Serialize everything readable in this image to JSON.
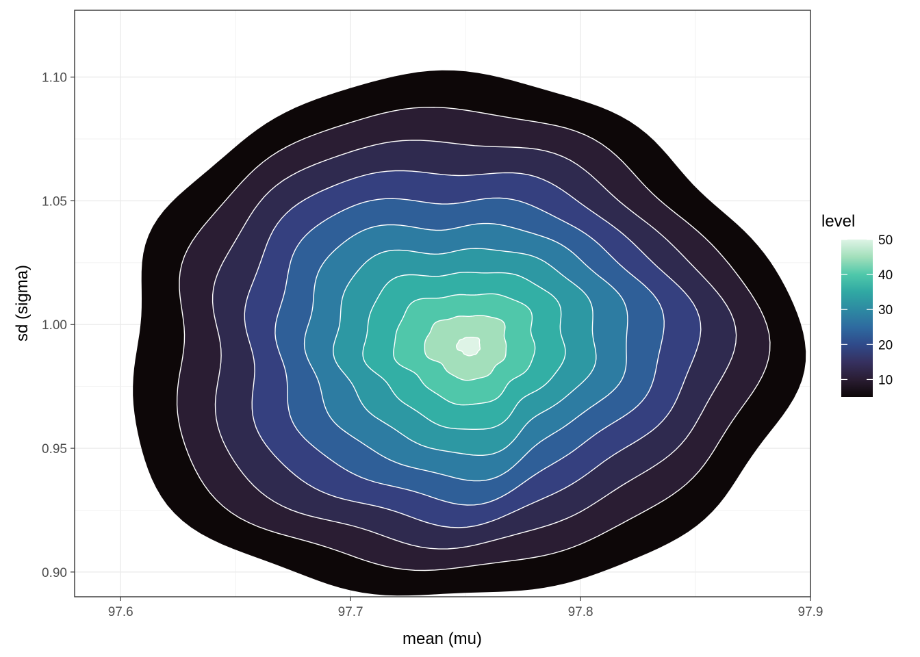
{
  "chart_data": {
    "type": "contour",
    "xlabel": "mean (mu)",
    "ylabel": "sd (sigma)",
    "xlim": [
      97.58,
      97.9
    ],
    "ylim": [
      0.89,
      1.127
    ],
    "x_ticks": [
      97.6,
      97.7,
      97.8,
      97.9
    ],
    "x_tick_labels": [
      "97.6",
      "97.7",
      "97.8",
      "97.9"
    ],
    "y_ticks": [
      0.9,
      0.95,
      1.0,
      1.05,
      1.1
    ],
    "y_tick_labels": [
      "0.90",
      "0.95",
      "1.00",
      "1.05",
      "1.10"
    ],
    "grid": true,
    "density_center": {
      "x": 97.745,
      "y": 0.993
    },
    "legend": {
      "title": "level",
      "placement": "right",
      "range": [
        5,
        50
      ],
      "ticks": [
        10,
        20,
        30,
        40,
        50
      ],
      "tick_labels": [
        "10",
        "20",
        "30",
        "40",
        "50"
      ],
      "color_stops": [
        "#0d0708",
        "#2a1d33",
        "#363160",
        "#2f4a8a",
        "#2e6ba0",
        "#2d8aa2",
        "#30a8a3",
        "#4fc8aa",
        "#a2dfbb",
        "#def4e6"
      ]
    },
    "bands": [
      {
        "level": 5,
        "color": "#0d0708"
      },
      {
        "level": 10,
        "color": "#2a1d33"
      },
      {
        "level": 15,
        "color": "#2f2a4f"
      },
      {
        "level": 20,
        "color": "#35407f"
      },
      {
        "level": 25,
        "color": "#2f5f98"
      },
      {
        "level": 30,
        "color": "#2d7ca2"
      },
      {
        "level": 35,
        "color": "#2d98a3"
      },
      {
        "level": 40,
        "color": "#33afa5"
      },
      {
        "level": 45,
        "color": "#50c7aa"
      },
      {
        "level": 50,
        "color": "#a3dfbb"
      },
      {
        "level": 55,
        "color": "#def4e6"
      }
    ]
  }
}
